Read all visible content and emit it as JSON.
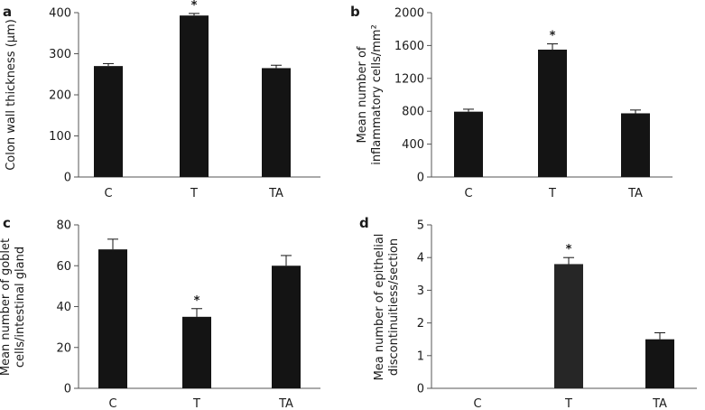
{
  "chart_data": [
    {
      "type": "bar",
      "panel": "a",
      "categories": [
        "C",
        "T",
        "TA"
      ],
      "values": [
        270,
        393,
        265
      ],
      "errors": [
        6,
        5,
        7
      ],
      "significance": [
        "",
        "*",
        ""
      ],
      "ylabel": "Colon wall thickness (μm)",
      "ylim": [
        0,
        400
      ],
      "yticks": [
        "0",
        "100",
        "200",
        "300",
        "400"
      ]
    },
    {
      "type": "bar",
      "panel": "b",
      "categories": [
        "C",
        "T",
        "TA"
      ],
      "values": [
        795,
        1550,
        775
      ],
      "errors": [
        30,
        70,
        40
      ],
      "significance": [
        "",
        "*",
        ""
      ],
      "ylabel": "Mean number of inflammatory cells/mm²",
      "ylabel_lines": [
        "Mean number of",
        "inflammatory cells/mm²"
      ],
      "ylim": [
        0,
        2000
      ],
      "yticks": [
        "0",
        "400",
        "800",
        "1200",
        "1600",
        "2000"
      ]
    },
    {
      "type": "bar",
      "panel": "c",
      "categories": [
        "C",
        "T",
        "TA"
      ],
      "values": [
        68,
        35,
        60
      ],
      "errors": [
        5,
        4,
        5
      ],
      "significance": [
        "",
        "*",
        ""
      ],
      "ylabel": "Mean number of goblet cells/intestinal gland",
      "ylabel_lines": [
        "Mean number of goblet",
        "cells/intestinal gland"
      ],
      "ylim": [
        0,
        80
      ],
      "yticks": [
        "0",
        "20",
        "40",
        "60",
        "80"
      ]
    },
    {
      "type": "bar",
      "panel": "d",
      "categories": [
        "C",
        "T",
        "TA"
      ],
      "values": [
        0,
        3.8,
        1.5
      ],
      "errors": [
        0,
        0.2,
        0.2
      ],
      "significance": [
        "",
        "*",
        ""
      ],
      "ylabel": "Mea number of epithelial discontinuitiess/section",
      "ylabel_lines": [
        "Mea number of epithelial",
        "discontinuitiess/section"
      ],
      "ylim": [
        0,
        5
      ],
      "yticks": [
        "0",
        "1",
        "2",
        "3",
        "4",
        "5"
      ]
    }
  ],
  "colors": {
    "bar": "#141414",
    "bar_alt": "#262626",
    "axis": "#555555",
    "text": "#1a1a1a"
  }
}
